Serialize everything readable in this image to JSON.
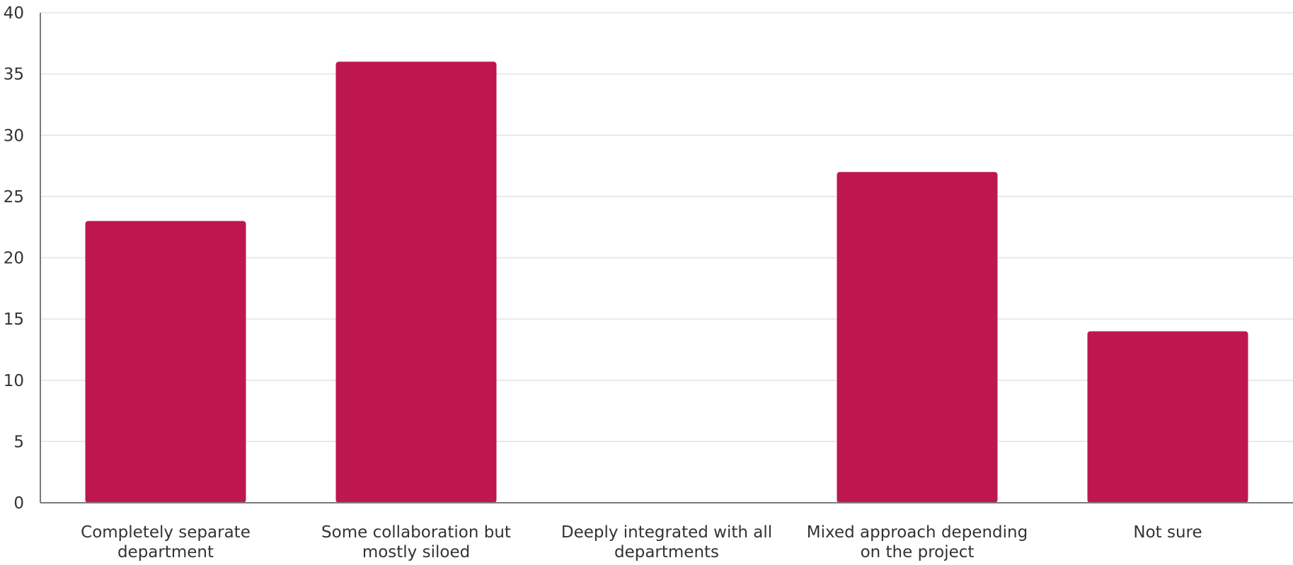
{
  "chart_data": {
    "type": "bar",
    "categories": [
      [
        "Completely separate",
        "department"
      ],
      [
        "Some collaboration but",
        "mostly siloed"
      ],
      [
        "Deeply integrated with all",
        "departments"
      ],
      [
        "Mixed approach depending",
        "on the project"
      ],
      [
        "Not sure"
      ]
    ],
    "values": [
      23,
      36,
      0,
      27,
      14
    ],
    "ylim": [
      0,
      40
    ],
    "yticks": [
      0,
      5,
      10,
      15,
      20,
      25,
      30,
      35,
      40
    ],
    "grid": true,
    "colors": {
      "bar": "#be174f",
      "grid": "#e3e3e3",
      "axis": "#7a7a7a"
    }
  }
}
